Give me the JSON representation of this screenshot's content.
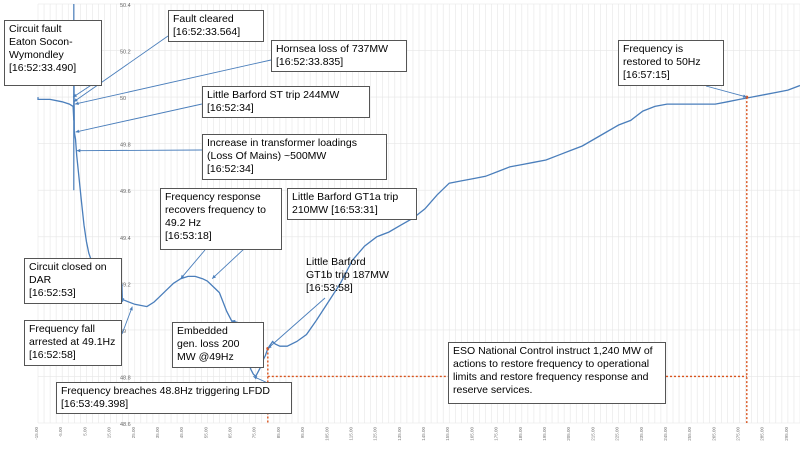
{
  "chart_data": {
    "type": "line",
    "title": "",
    "xlabel": "",
    "ylabel": "",
    "ylim": [
      48.6,
      50.4
    ],
    "xlim": [
      -15,
      300
    ],
    "grid": true,
    "y_ticks": [
      48.6,
      48.8,
      49.0,
      49.2,
      49.4,
      49.6,
      49.8,
      50.0,
      50.2,
      50.4
    ],
    "y_tick_labels": [
      "48.6",
      "48.8",
      "49",
      "49.2",
      "49.4",
      "49.6",
      "49.8",
      "50",
      "50.2",
      "50.4"
    ],
    "x_tick_step": 2.5,
    "line_color": "#4a7ebb",
    "marker_color": "#d9541e",
    "series": [
      {
        "x": [
          -25,
          -20,
          -15,
          -10,
          -5,
          -2,
          -0.5,
          -0.2,
          -0.1,
          0,
          0.5,
          1,
          2,
          3,
          4,
          5,
          6,
          8,
          10,
          14,
          20,
          25,
          30,
          33,
          35,
          38,
          41,
          44,
          47,
          50,
          53,
          55,
          58,
          60,
          63,
          66,
          68,
          70,
          72,
          73,
          74,
          75,
          77,
          78,
          79,
          80,
          82,
          83,
          85,
          88,
          92,
          96,
          100,
          105,
          110,
          115,
          120,
          125,
          130,
          135,
          140,
          145,
          150,
          155,
          160,
          165,
          170,
          175,
          180,
          185,
          190,
          195,
          200,
          205,
          210,
          215,
          220,
          225,
          230,
          235,
          240,
          245,
          250,
          255,
          260,
          265,
          270,
          275,
          280,
          285,
          290,
          295,
          300
        ],
        "y": [
          50.0,
          50.0,
          49.99,
          49.99,
          49.98,
          49.97,
          49.96,
          49.9,
          50.05,
          49.85,
          49.82,
          49.75,
          49.65,
          49.55,
          49.45,
          49.38,
          49.33,
          49.27,
          49.22,
          49.17,
          49.13,
          49.11,
          49.1,
          49.12,
          49.14,
          49.17,
          49.2,
          49.22,
          49.23,
          49.23,
          49.22,
          49.21,
          49.18,
          49.16,
          49.08,
          49.02,
          48.98,
          48.92,
          48.86,
          48.83,
          48.81,
          48.8,
          48.84,
          48.87,
          48.89,
          48.92,
          48.95,
          48.94,
          48.93,
          48.93,
          48.95,
          48.98,
          49.04,
          49.12,
          49.2,
          49.3,
          49.36,
          49.4,
          49.42,
          49.45,
          49.48,
          49.52,
          49.58,
          49.63,
          49.64,
          49.65,
          49.66,
          49.68,
          49.7,
          49.71,
          49.72,
          49.73,
          49.75,
          49.77,
          49.79,
          49.82,
          49.85,
          49.88,
          49.9,
          49.94,
          49.96,
          49.97,
          49.97,
          49.97,
          49.97,
          49.97,
          49.98,
          49.99,
          50.0,
          50.01,
          50.02,
          50.03,
          50.05
        ]
      }
    ],
    "markers": [
      {
        "x": 80,
        "y": 48.92
      },
      {
        "x": 278,
        "y": 50.0
      }
    ],
    "callouts": [
      {
        "text": "Circuit fault\nEaton Socon-\nWymondley\n[16:52:33.490]",
        "x": -0.5,
        "y": 50.0
      },
      {
        "text": "Fault cleared\n[16:52:33.564]",
        "x": -0.2,
        "y": 49.98
      },
      {
        "text": "Hornsea loss of 737MW\n[16:52:33.835]",
        "x": 0.3,
        "y": 49.97
      },
      {
        "text": "Little Barford ST trip 244MW\n[16:52:34]",
        "x": 0.5,
        "y": 49.85
      },
      {
        "text": "Increase in transformer loadings\n(Loss Of Mains) ~500MW\n[16:52:34]",
        "x": 1,
        "y": 49.77
      },
      {
        "text": "Frequency response\nrecovers frequency to\n49.2 Hz\n[16:53:18]",
        "x": 44,
        "y": 49.22
      },
      {
        "text": "Little Barford GT1a trip\n210MW [16:53:31]",
        "x": 57,
        "y": 49.22
      },
      {
        "text": "Circuit closed on\nDAR\n[16:52:53]",
        "x": 20,
        "y": 49.12
      },
      {
        "text": "Frequency fall\narrested at 49.1Hz\n[16:52:58]",
        "x": 24,
        "y": 49.1
      },
      {
        "text": "Embedded\ngen. loss 200\nMW @49Hz",
        "x": 65,
        "y": 49.04
      },
      {
        "text": "Little Barford\nGT1b trip 187MW\n[16:53:58]",
        "x": 80,
        "y": 48.92
      },
      {
        "text": "Frequency breaches 48.8Hz triggering LFDD\n[16:53:49.398]",
        "x": 74,
        "y": 48.8
      },
      {
        "text": "Frequency is\nrestored to 50Hz\n[16:57:15]",
        "x": 278,
        "y": 50.0
      },
      {
        "text": "ESO National Control instruct 1,240 MW of\nactions to restore frequency to operational\nlimits and restore frequency response and\nreserve services.",
        "x": null,
        "y": null
      }
    ]
  }
}
